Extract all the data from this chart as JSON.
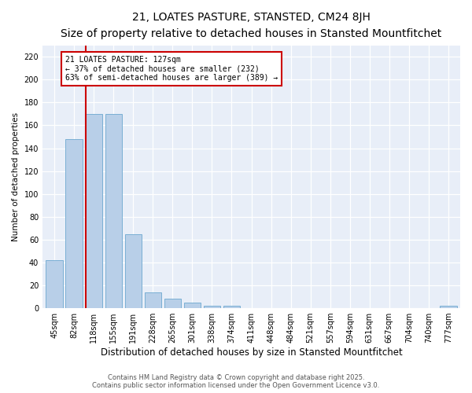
{
  "title": "21, LOATES PASTURE, STANSTED, CM24 8JH",
  "subtitle": "Size of property relative to detached houses in Stansted Mountfitchet",
  "xlabel": "Distribution of detached houses by size in Stansted Mountfitchet",
  "ylabel": "Number of detached properties",
  "bar_labels": [
    "45sqm",
    "82sqm",
    "118sqm",
    "155sqm",
    "191sqm",
    "228sqm",
    "265sqm",
    "301sqm",
    "338sqm",
    "374sqm",
    "411sqm",
    "448sqm",
    "484sqm",
    "521sqm",
    "557sqm",
    "594sqm",
    "631sqm",
    "667sqm",
    "704sqm",
    "740sqm",
    "777sqm"
  ],
  "bar_values": [
    42,
    148,
    170,
    170,
    65,
    14,
    8,
    5,
    2,
    2,
    0,
    0,
    0,
    0,
    0,
    0,
    0,
    0,
    0,
    0,
    2
  ],
  "bar_color": "#b8cfe8",
  "bar_edgecolor": "#7aafd4",
  "property_line_index": 2,
  "annotation_line1": "21 LOATES PASTURE: 127sqm",
  "annotation_line2": "← 37% of detached houses are smaller (232)",
  "annotation_line3": "63% of semi-detached houses are larger (389) →",
  "line_color": "#cc0000",
  "ylim": [
    0,
    230
  ],
  "yticks": [
    0,
    20,
    40,
    60,
    80,
    100,
    120,
    140,
    160,
    180,
    200,
    220
  ],
  "bg_color": "#ffffff",
  "plot_bg_color": "#e8eef8",
  "grid_color": "#ffffff",
  "footer_line1": "Contains HM Land Registry data © Crown copyright and database right 2025.",
  "footer_line2": "Contains public sector information licensed under the Open Government Licence v3.0.",
  "title_fontsize": 10,
  "subtitle_fontsize": 8.5,
  "xlabel_fontsize": 8.5,
  "ylabel_fontsize": 7.5,
  "tick_fontsize": 7,
  "annot_fontsize": 7,
  "footer_fontsize": 6
}
